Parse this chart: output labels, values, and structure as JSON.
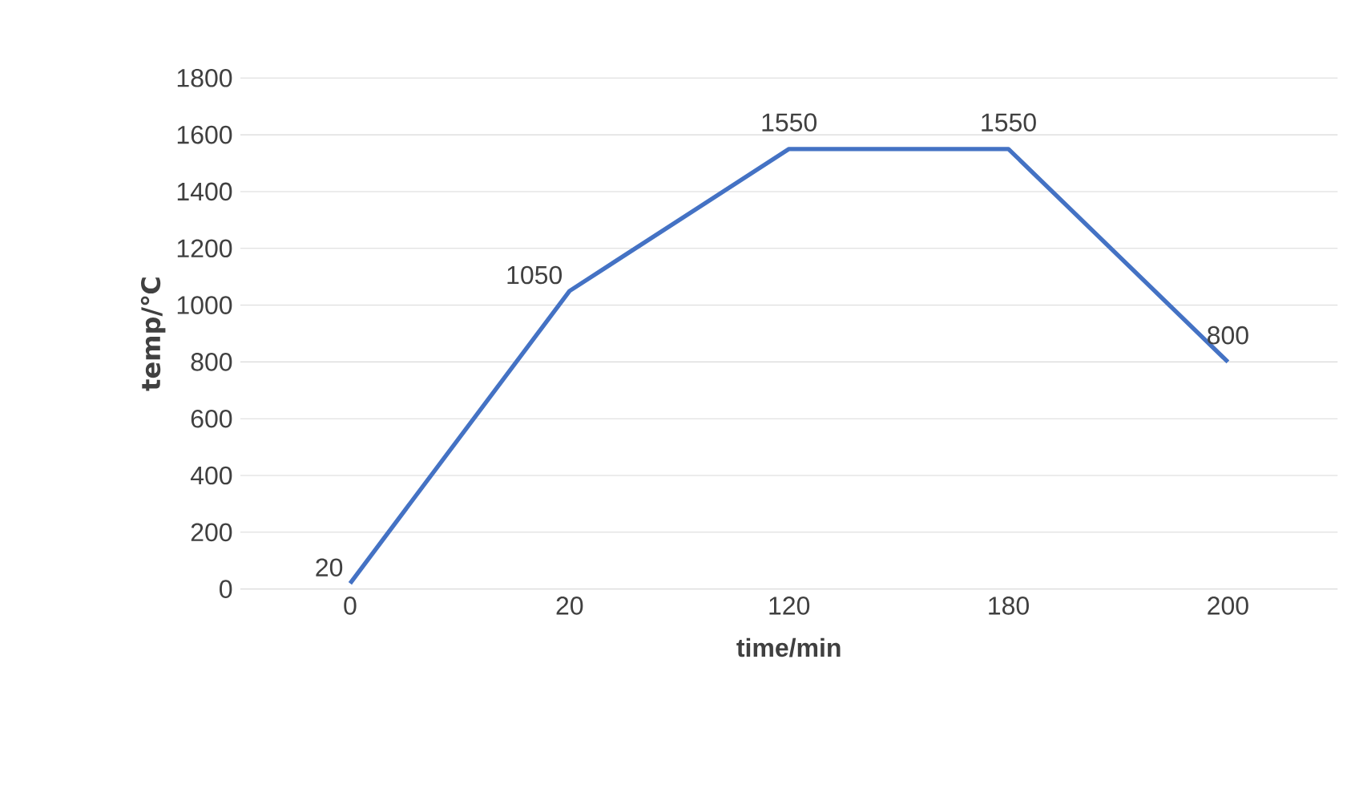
{
  "chart_data": {
    "type": "line",
    "xlabel": "time/min",
    "ylabel": "temp/℃",
    "categories": [
      "0",
      "20",
      "120",
      "180",
      "200"
    ],
    "series": [
      {
        "color": "#4472c4",
        "values": [
          20,
          1050,
          1550,
          1550,
          800
        ]
      }
    ],
    "ylim": [
      0,
      1800
    ],
    "yticks": [
      0,
      200,
      400,
      600,
      800,
      1000,
      1200,
      1400,
      1600,
      1800
    ],
    "grid": "y",
    "data_labels": true,
    "marker": "none",
    "line_style": "solid"
  }
}
